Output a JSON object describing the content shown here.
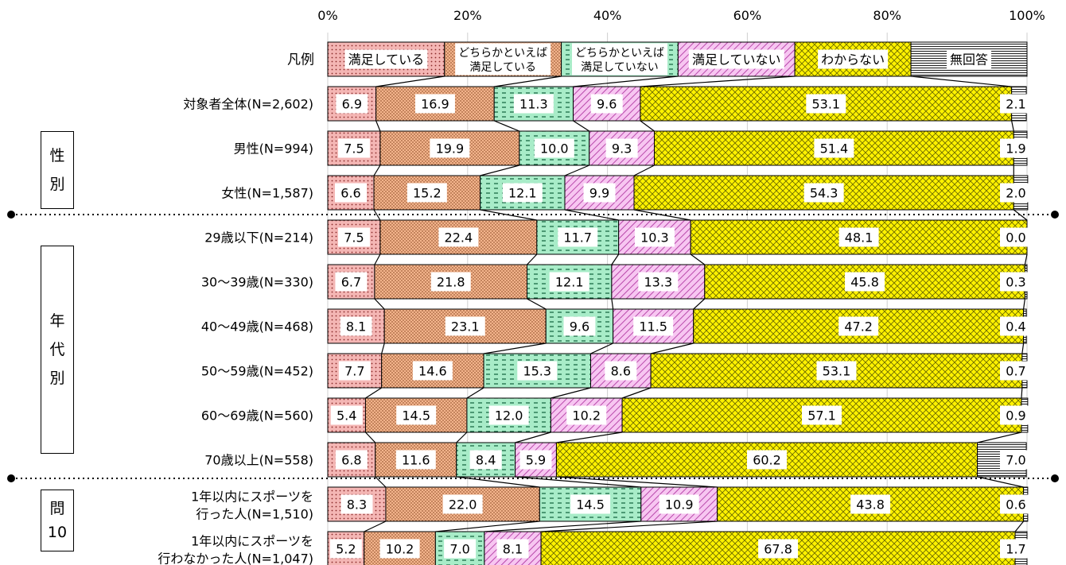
{
  "chart_data": {
    "type": "bar",
    "stacked": true,
    "orientation": "horizontal",
    "xlim": [
      0,
      100
    ],
    "x_ticks": [
      "0%",
      "20%",
      "40%",
      "60%",
      "80%",
      "100%"
    ],
    "legend_row_label": "凡例",
    "legend": [
      "満足している",
      "どちらかといえば\n満足している",
      "どちらかといえば\n満足していない",
      "満足していない",
      "わからない",
      "無回答"
    ],
    "series": [
      {
        "name": "満足している",
        "color": "#f4b6b4"
      },
      {
        "name": "どちらかといえば満足している",
        "color": "#f3b48c"
      },
      {
        "name": "どちらかといえば満足していない",
        "color": "#a8ecc8"
      },
      {
        "name": "満足していない",
        "color": "#f7c6f1"
      },
      {
        "name": "わからない",
        "color": "#fff200"
      },
      {
        "name": "無回答",
        "color": "#ffffff"
      }
    ],
    "rows": [
      {
        "label": "対象者全体(N=2,602)",
        "values": [
          6.9,
          16.9,
          11.3,
          9.6,
          53.1,
          2.1
        ]
      },
      {
        "label": "男性(N=994)",
        "values": [
          7.5,
          19.9,
          10.0,
          9.3,
          51.4,
          1.9
        ]
      },
      {
        "label": "女性(N=1,587)",
        "values": [
          6.6,
          15.2,
          12.1,
          9.9,
          54.3,
          2.0
        ]
      },
      {
        "label": "29歳以下(N=214)",
        "values": [
          7.5,
          22.4,
          11.7,
          10.3,
          48.1,
          0.0
        ]
      },
      {
        "label": "30〜39歳(N=330)",
        "values": [
          6.7,
          21.8,
          12.1,
          13.3,
          45.8,
          0.3
        ]
      },
      {
        "label": "40〜49歳(N=468)",
        "values": [
          8.1,
          23.1,
          9.6,
          11.5,
          47.2,
          0.4
        ]
      },
      {
        "label": "50〜59歳(N=452)",
        "values": [
          7.7,
          14.6,
          15.3,
          8.6,
          53.1,
          0.7
        ]
      },
      {
        "label": "60〜69歳(N=560)",
        "values": [
          5.4,
          14.5,
          12.0,
          10.2,
          57.1,
          0.9
        ]
      },
      {
        "label": "70歳以上(N=558)",
        "values": [
          6.8,
          11.6,
          8.4,
          5.9,
          60.2,
          7.0
        ]
      },
      {
        "label": "1年以内にスポーツを\n行った人(N=1,510)",
        "values": [
          8.3,
          22.0,
          14.5,
          10.9,
          43.8,
          0.6
        ]
      },
      {
        "label": "1年以内にスポーツを\n行わなかった人(N=1,047)",
        "values": [
          5.2,
          10.2,
          7.0,
          8.1,
          67.8,
          1.7
        ]
      }
    ]
  },
  "groups": {
    "gender": [
      "性",
      "別"
    ],
    "age": [
      "年",
      "代",
      "別"
    ],
    "q10": [
      "問",
      "10"
    ]
  }
}
